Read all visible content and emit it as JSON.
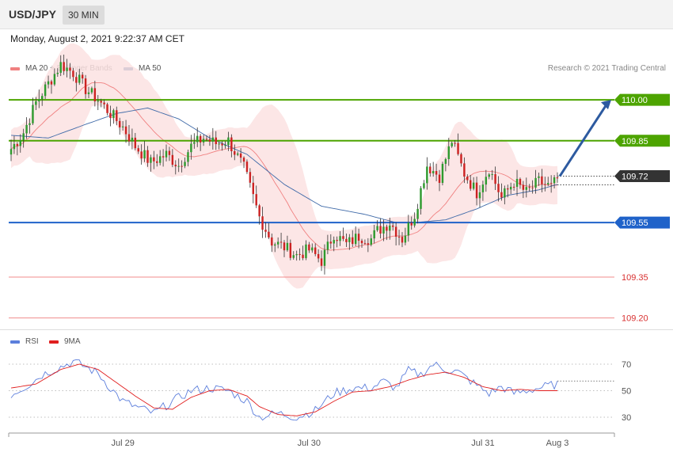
{
  "header": {
    "pair": "USD/JPY",
    "timeframe": "30 MIN"
  },
  "datetime": "Monday, August 2, 2021 9:22:37 AM CET",
  "copyright": "Research © 2021 Trading Central",
  "colors": {
    "bull": "#2e9a2e",
    "bear": "#cc2222",
    "ma20": "#f08080",
    "band": "#fbe2e2",
    "ma50": "#3f6aa8",
    "arrow": "#2d5aa0",
    "green_level": "#4da400",
    "blue_level": "#1f62c9",
    "red_level": "#f08b8b",
    "last_label": "#333333",
    "rsi": "#5d7fdc",
    "rsi_ma": "#e11f1f"
  },
  "chart_data": [
    {
      "type": "candlestick",
      "legend": [
        {
          "name": "MA 20 + Bollinger Bands",
          "color": "#f08080"
        },
        {
          "name": "MA 50",
          "color": "#2b5797"
        }
      ],
      "y_range": [
        109.17,
        110.25
      ],
      "x_labels": [
        "Jul 29",
        "Jul 30",
        "Jul 31",
        "Aug 3"
      ],
      "levels": [
        {
          "label": "110.00",
          "value": 110.0,
          "style": "green"
        },
        {
          "label": "109.85",
          "value": 109.85,
          "style": "green"
        },
        {
          "label": "109.72",
          "value": 109.72,
          "style": "last"
        },
        {
          "label": "109.55",
          "value": 109.55,
          "style": "blue"
        },
        {
          "label": "109.35",
          "value": 109.35,
          "style": "red"
        },
        {
          "label": "109.20",
          "value": 109.2,
          "style": "red"
        }
      ],
      "projection": {
        "from": 109.72,
        "to": 110.0
      },
      "anchors": [
        [
          0,
          109.82
        ],
        [
          4,
          109.88
        ],
        [
          8,
          109.99
        ],
        [
          12,
          110.06
        ],
        [
          16,
          110.13
        ],
        [
          20,
          110.1
        ],
        [
          24,
          110.04
        ],
        [
          28,
          110.0
        ],
        [
          32,
          109.95
        ],
        [
          36,
          109.9
        ],
        [
          40,
          109.83
        ],
        [
          45,
          109.77
        ],
        [
          50,
          109.8
        ],
        [
          54,
          109.76
        ],
        [
          58,
          109.83
        ],
        [
          62,
          109.86
        ],
        [
          66,
          109.84
        ],
        [
          70,
          109.85
        ],
        [
          75,
          109.75
        ],
        [
          80,
          109.57
        ],
        [
          84,
          109.48
        ],
        [
          88,
          109.46
        ],
        [
          92,
          109.43
        ],
        [
          96,
          109.45
        ],
        [
          100,
          109.41
        ],
        [
          104,
          109.51
        ],
        [
          108,
          109.47
        ],
        [
          112,
          109.5
        ],
        [
          116,
          109.49
        ],
        [
          118,
          109.52
        ],
        [
          122,
          109.55
        ],
        [
          126,
          109.49
        ],
        [
          130,
          109.58
        ],
        [
          134,
          109.76
        ],
        [
          138,
          109.72
        ],
        [
          142,
          109.85
        ],
        [
          146,
          109.73
        ],
        [
          150,
          109.66
        ],
        [
          154,
          109.75
        ],
        [
          158,
          109.64
        ],
        [
          162,
          109.7
        ],
        [
          166,
          109.66
        ],
        [
          170,
          109.7
        ],
        [
          174,
          109.68
        ],
        [
          176,
          109.71
        ]
      ],
      "ma50": [
        [
          0,
          109.87
        ],
        [
          12,
          109.86
        ],
        [
          24,
          109.91
        ],
        [
          34,
          109.95
        ],
        [
          44,
          109.97
        ],
        [
          54,
          109.93
        ],
        [
          64,
          109.86
        ],
        [
          76,
          109.8
        ],
        [
          88,
          109.69
        ],
        [
          100,
          109.61
        ],
        [
          114,
          109.58
        ],
        [
          124,
          109.55
        ],
        [
          130,
          109.55
        ],
        [
          140,
          109.56
        ],
        [
          150,
          109.6
        ],
        [
          160,
          109.65
        ],
        [
          170,
          109.67
        ],
        [
          176,
          109.69
        ]
      ]
    },
    {
      "type": "line",
      "legend": [
        {
          "name": "RSI",
          "color": "#5b7fdc"
        },
        {
          "name": "9MA",
          "color": "#e01f1f"
        }
      ],
      "y_ticks": [
        70,
        50,
        30
      ],
      "rsi_anchors": [
        [
          0,
          47
        ],
        [
          6,
          55
        ],
        [
          10,
          62
        ],
        [
          16,
          68
        ],
        [
          20,
          72
        ],
        [
          24,
          68
        ],
        [
          28,
          63
        ],
        [
          32,
          52
        ],
        [
          36,
          42
        ],
        [
          40,
          38
        ],
        [
          46,
          33
        ],
        [
          52,
          42
        ],
        [
          58,
          50
        ],
        [
          64,
          52
        ],
        [
          70,
          50
        ],
        [
          76,
          42
        ],
        [
          80,
          30
        ],
        [
          86,
          33
        ],
        [
          92,
          30
        ],
        [
          98,
          35
        ],
        [
          104,
          48
        ],
        [
          110,
          52
        ],
        [
          116,
          52
        ],
        [
          120,
          57
        ],
        [
          124,
          52
        ],
        [
          128,
          65
        ],
        [
          132,
          62
        ],
        [
          136,
          70
        ],
        [
          140,
          66
        ],
        [
          144,
          64
        ],
        [
          150,
          54
        ],
        [
          154,
          48
        ],
        [
          158,
          53
        ],
        [
          162,
          48
        ],
        [
          166,
          50
        ],
        [
          170,
          52
        ],
        [
          176,
          55
        ]
      ],
      "ma_anchors": [
        [
          0,
          52
        ],
        [
          8,
          55
        ],
        [
          16,
          66
        ],
        [
          22,
          70
        ],
        [
          28,
          66
        ],
        [
          34,
          56
        ],
        [
          40,
          46
        ],
        [
          46,
          37
        ],
        [
          52,
          36
        ],
        [
          58,
          45
        ],
        [
          64,
          50
        ],
        [
          70,
          51
        ],
        [
          76,
          46
        ],
        [
          80,
          38
        ],
        [
          86,
          32
        ],
        [
          92,
          31
        ],
        [
          98,
          34
        ],
        [
          104,
          42
        ],
        [
          110,
          49
        ],
        [
          116,
          50
        ],
        [
          122,
          53
        ],
        [
          128,
          58
        ],
        [
          134,
          62
        ],
        [
          140,
          64
        ],
        [
          146,
          60
        ],
        [
          152,
          53
        ],
        [
          158,
          50
        ],
        [
          164,
          51
        ],
        [
          170,
          50
        ],
        [
          176,
          50
        ]
      ]
    }
  ]
}
